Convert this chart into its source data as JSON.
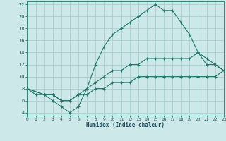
{
  "title": "",
  "xlabel": "Humidex (Indice chaleur)",
  "xlim": [
    0,
    23
  ],
  "ylim": [
    3.5,
    22.5
  ],
  "xticks": [
    0,
    1,
    2,
    3,
    4,
    5,
    6,
    7,
    8,
    9,
    10,
    11,
    12,
    13,
    14,
    15,
    16,
    17,
    18,
    19,
    20,
    21,
    22,
    23
  ],
  "yticks": [
    4,
    6,
    8,
    10,
    12,
    14,
    16,
    18,
    20,
    22
  ],
  "bg_color": "#cce8e8",
  "grid_color": "#aad0d0",
  "line_color": "#1a7a6a",
  "lines": [
    {
      "x": [
        0,
        1,
        2,
        3,
        4,
        5,
        6,
        7,
        8,
        9,
        10,
        11,
        12,
        13,
        14,
        15,
        16,
        17,
        18,
        19,
        20,
        21,
        22,
        23
      ],
      "y": [
        8,
        7,
        7,
        6,
        5,
        4,
        5,
        8,
        12,
        15,
        17,
        18,
        19,
        20,
        21,
        22,
        21,
        21,
        19,
        17,
        14,
        12,
        12,
        11
      ]
    },
    {
      "x": [
        0,
        2,
        3,
        4,
        5,
        6,
        7,
        8,
        9,
        10,
        11,
        12,
        13,
        14,
        15,
        16,
        17,
        18,
        19,
        20,
        21,
        22,
        23
      ],
      "y": [
        8,
        7,
        7,
        6,
        6,
        7,
        8,
        9,
        10,
        11,
        11,
        12,
        12,
        13,
        13,
        13,
        13,
        13,
        13,
        14,
        13,
        12,
        11
      ]
    },
    {
      "x": [
        0,
        2,
        3,
        4,
        5,
        6,
        7,
        8,
        9,
        10,
        11,
        12,
        13,
        14,
        15,
        16,
        17,
        18,
        19,
        20,
        21,
        22,
        23
      ],
      "y": [
        8,
        7,
        7,
        6,
        6,
        7,
        7,
        8,
        8,
        9,
        9,
        9,
        10,
        10,
        10,
        10,
        10,
        10,
        10,
        10,
        10,
        10,
        11
      ]
    }
  ]
}
